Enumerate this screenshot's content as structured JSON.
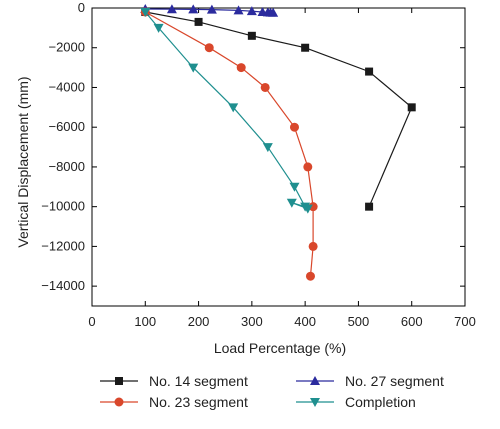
{
  "chart_data": {
    "type": "line",
    "xlabel": "Load Percentage (%)",
    "ylabel": "Vertical Displacement (mm)",
    "xlim": [
      0,
      700
    ],
    "ylim": [
      -15000,
      0
    ],
    "x_ticks": [
      0,
      100,
      200,
      300,
      400,
      500,
      600,
      700
    ],
    "y_ticks": [
      0,
      -2000,
      -4000,
      -6000,
      -8000,
      -10000,
      -12000,
      -14000
    ],
    "x_tick_labels": [
      "0",
      "100",
      "200",
      "300",
      "400",
      "500",
      "600",
      "700"
    ],
    "y_tick_labels": [
      "0",
      "−2000",
      "−4000",
      "−6000",
      "−8000",
      "−10000",
      "−12000",
      "−14000"
    ],
    "grid": false,
    "legend_position": "bottom",
    "series": [
      {
        "name": "No. 14 segment",
        "color": "#1a1a1a",
        "marker": "square",
        "points": [
          [
            100,
            -200
          ],
          [
            200,
            -700
          ],
          [
            300,
            -1400
          ],
          [
            400,
            -2000
          ],
          [
            520,
            -3200
          ],
          [
            600,
            -5000
          ],
          [
            520,
            -10000
          ]
        ]
      },
      {
        "name": "No. 27 segment",
        "color": "#2b2b9e",
        "marker": "triangle-up",
        "points": [
          [
            100,
            -50
          ],
          [
            150,
            -60
          ],
          [
            190,
            -70
          ],
          [
            225,
            -80
          ],
          [
            275,
            -120
          ],
          [
            300,
            -160
          ],
          [
            320,
            -200
          ],
          [
            330,
            -220
          ],
          [
            335,
            -230
          ],
          [
            340,
            -240
          ]
        ]
      },
      {
        "name": "No. 23 segment",
        "color": "#d9472b",
        "marker": "circle",
        "points": [
          [
            100,
            -200
          ],
          [
            220,
            -2000
          ],
          [
            280,
            -3000
          ],
          [
            325,
            -4000
          ],
          [
            380,
            -6000
          ],
          [
            405,
            -8000
          ],
          [
            415,
            -10000
          ],
          [
            415,
            -12000
          ],
          [
            410,
            -13500
          ]
        ]
      },
      {
        "name": "Completion",
        "color": "#1f8f8f",
        "marker": "triangle-down",
        "points": [
          [
            100,
            -200
          ],
          [
            125,
            -1000
          ],
          [
            190,
            -3000
          ],
          [
            265,
            -5000
          ],
          [
            330,
            -7000
          ],
          [
            380,
            -9000
          ],
          [
            400,
            -10000
          ],
          [
            375,
            -9800
          ],
          [
            405,
            -10100
          ]
        ]
      }
    ]
  }
}
